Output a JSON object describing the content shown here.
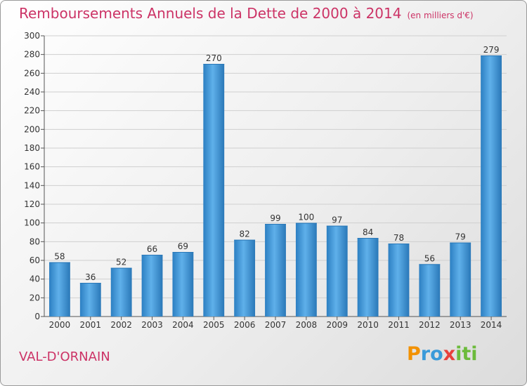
{
  "header": {
    "title": "Remboursements Annuels de la Dette de 2000 à 2014",
    "unit": "(en milliers d'€)"
  },
  "footer": {
    "commune": "VAL-D'ORNAIN",
    "logo_letters": [
      "P",
      "r",
      "o",
      "x",
      "i",
      "t",
      "i"
    ],
    "logo_colors": [
      "#f29100",
      "#3a9ad9",
      "#3a9ad9",
      "#e8403c",
      "#6cbb3c",
      "#6cbb3c",
      "#6cbb3c"
    ]
  },
  "chart_data": {
    "type": "bar",
    "title": "Remboursements Annuels de la Dette de 2000 à 2014",
    "categories": [
      "2000",
      "2001",
      "2002",
      "2003",
      "2004",
      "2005",
      "2006",
      "2007",
      "2008",
      "2009",
      "2010",
      "2011",
      "2012",
      "2013",
      "2014"
    ],
    "values": [
      58,
      36,
      52,
      66,
      69,
      270,
      82,
      99,
      100,
      97,
      84,
      78,
      56,
      79,
      279
    ],
    "ylim": [
      0,
      300
    ],
    "yticks": [
      0,
      20,
      40,
      60,
      80,
      100,
      120,
      140,
      160,
      180,
      200,
      220,
      240,
      260,
      280,
      300
    ],
    "grid": true,
    "bar_color": "#3a9ad9",
    "bar_color_dark": "#2a78b8"
  }
}
